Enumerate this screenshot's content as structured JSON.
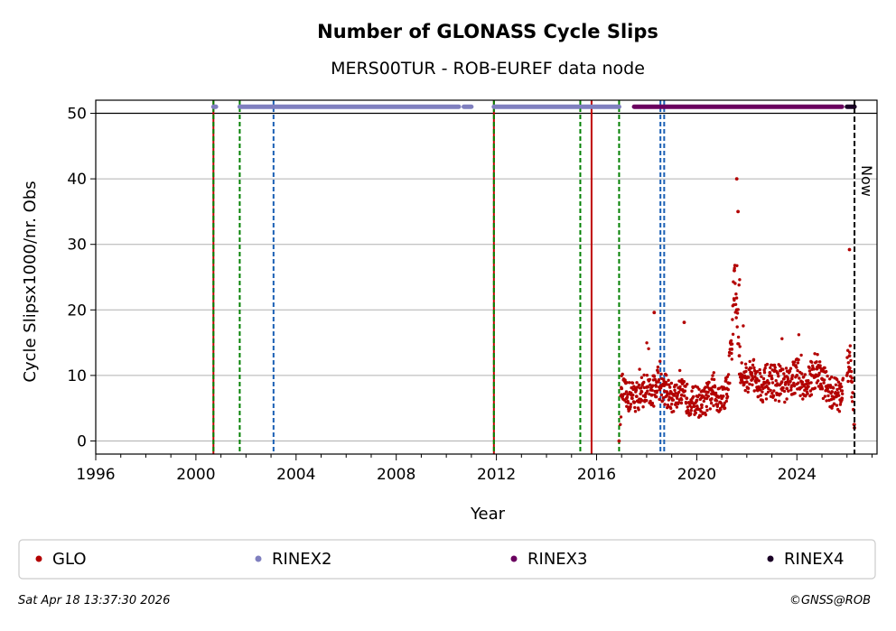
{
  "chart_data": {
    "type": "scatter",
    "title": "Number of GLONASS Cycle Slips",
    "subtitle": "MERS00TUR - ROB-EUREF data node",
    "xlabel": "Year",
    "ylabel": "Cycle Slipsx1000/nr. Obs",
    "xlim": [
      1996,
      2027.2
    ],
    "ylim": [
      -2,
      52
    ],
    "xticks": [
      "1996",
      "2000",
      "2004",
      "2008",
      "2012",
      "2016",
      "2020",
      "2024"
    ],
    "xtick_values": [
      1996,
      2000,
      2004,
      2008,
      2012,
      2016,
      2020,
      2024
    ],
    "yticks": [
      "0",
      "10",
      "20",
      "30",
      "40",
      "50"
    ],
    "ytick_values": [
      0,
      10,
      20,
      30,
      40,
      50
    ],
    "grid": "horizontal",
    "reference_line_y": 50,
    "now_label": "Now",
    "now_x": 2026.3,
    "event_lines": [
      {
        "x": 2000.7,
        "color": "#c00000",
        "style": "solid"
      },
      {
        "x": 2000.7,
        "color": "#008000",
        "style": "dashed"
      },
      {
        "x": 2001.75,
        "color": "#008000",
        "style": "dashed"
      },
      {
        "x": 2003.1,
        "color": "#1a5fb4",
        "style": "dashed"
      },
      {
        "x": 2011.9,
        "color": "#c00000",
        "style": "solid"
      },
      {
        "x": 2011.9,
        "color": "#008000",
        "style": "dashed"
      },
      {
        "x": 2015.35,
        "color": "#008000",
        "style": "dashed"
      },
      {
        "x": 2015.8,
        "color": "#c00000",
        "style": "solid"
      },
      {
        "x": 2016.9,
        "color": "#008000",
        "style": "dashed"
      },
      {
        "x": 2018.55,
        "color": "#1a5fb4",
        "style": "dashed"
      },
      {
        "x": 2018.7,
        "color": "#1a5fb4",
        "style": "dashed"
      }
    ],
    "rinex2_segments": [
      [
        2000.7,
        2000.8
      ],
      [
        2001.75,
        2010.5
      ],
      [
        2010.7,
        2011.0
      ],
      [
        2011.9,
        2015.3
      ],
      [
        2015.4,
        2016.9
      ]
    ],
    "rinex3_segments": [
      [
        2017.5,
        2025.8
      ]
    ],
    "rinex4_segments": [
      [
        2026.0,
        2026.3
      ]
    ],
    "series": [
      {
        "name": "GLO",
        "color": "#b30000",
        "note": "daily cycle-slip ratio, approx. values by period",
        "x": [
          2016.9,
          2017.0,
          2017.2,
          2017.4,
          2017.6,
          2017.8,
          2018.0,
          2018.2,
          2018.4,
          2018.6,
          2018.8,
          2019.0,
          2019.2,
          2019.4,
          2019.6,
          2019.8,
          2020.0,
          2020.2,
          2020.4,
          2020.6,
          2020.8,
          2021.0,
          2021.2,
          2021.4,
          2021.5,
          2021.6,
          2021.7,
          2021.8,
          2021.9,
          2022.0,
          2022.2,
          2022.4,
          2022.6,
          2022.8,
          2023.0,
          2023.2,
          2023.4,
          2023.6,
          2023.8,
          2024.0,
          2024.2,
          2024.4,
          2024.6,
          2024.8,
          2025.0,
          2025.2,
          2025.4,
          2025.6,
          2025.8,
          2026.0,
          2026.1,
          2026.2,
          2026.3
        ],
        "values": [
          0,
          8,
          6.5,
          7,
          6.8,
          7.5,
          8.2,
          7,
          9,
          8.5,
          7.5,
          6.5,
          6.8,
          7,
          6.5,
          6,
          6.2,
          5.5,
          6.5,
          7.2,
          6.8,
          6.5,
          8,
          14,
          26,
          20,
          13,
          10,
          10.5,
          9,
          10,
          9.5,
          8.5,
          9,
          9.5,
          8.5,
          9,
          8,
          9.5,
          10,
          9,
          8,
          10,
          11,
          9.5,
          8,
          7.5,
          7,
          6.5,
          10,
          13,
          9,
          2
        ]
      },
      {
        "name": "RINEX2",
        "color": "#7f7fbf"
      },
      {
        "name": "RINEX3",
        "color": "#6a005f"
      },
      {
        "name": "RINEX4",
        "color": "#1a0026"
      }
    ],
    "legend": {
      "placement": "bottom",
      "entries": [
        "GLO",
        "RINEX2",
        "RINEX3",
        "RINEX4"
      ]
    }
  },
  "footer": {
    "date": "Sat Apr 18 13:37:30 2026",
    "copyright": "©GNSS@ROB"
  }
}
